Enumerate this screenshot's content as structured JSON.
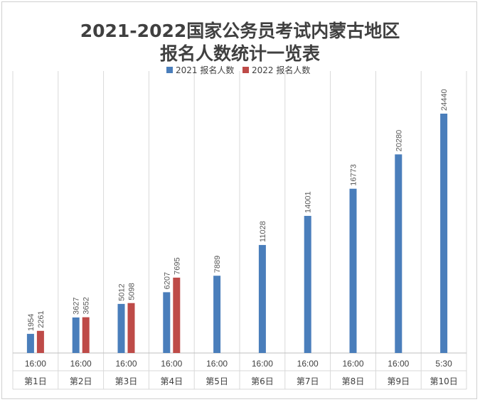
{
  "chart_data": {
    "type": "bar",
    "title_line1": "2021-2022国家公务员考试内蒙古地区",
    "title_line2": "报名人数统计一览表",
    "categories": [
      {
        "time": "16:00",
        "day": "第1日"
      },
      {
        "time": "16:00",
        "day": "第2日"
      },
      {
        "time": "16:00",
        "day": "第3日"
      },
      {
        "time": "16:00",
        "day": "第4日"
      },
      {
        "time": "16:00",
        "day": "第5日"
      },
      {
        "time": "16:00",
        "day": "第6日"
      },
      {
        "time": "16:00",
        "day": "第7日"
      },
      {
        "time": "16:00",
        "day": "第8日"
      },
      {
        "time": "16:00",
        "day": "第9日"
      },
      {
        "time": "5:30",
        "day": "第10日"
      }
    ],
    "series": [
      {
        "name": "2021 报名人数",
        "color": "#4a7ebb",
        "values": [
          1954,
          3627,
          5012,
          6207,
          7889,
          11028,
          14001,
          16773,
          20280,
          24440
        ]
      },
      {
        "name": "2022 报名人数",
        "color": "#be4b48",
        "values": [
          2261,
          3652,
          5098,
          7695,
          null,
          null,
          null,
          null,
          null,
          null
        ]
      }
    ],
    "ylim": [
      0,
      26000
    ],
    "grid": "vertical category separators",
    "legend": "top-center",
    "data_labels": true
  }
}
